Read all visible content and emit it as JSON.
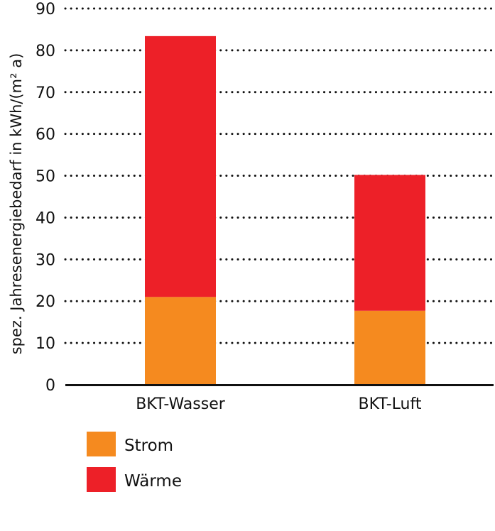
{
  "chart_data": {
    "type": "bar",
    "stacked": true,
    "title": "",
    "xlabel": "",
    "ylabel": "spez. Jahresenergiebedarf in kWh/(m² a)",
    "categories": [
      "BKT-Wasser",
      "BKT-Luft"
    ],
    "series": [
      {
        "name": "Strom",
        "color": "#f58a1f",
        "values": [
          21,
          17.7
        ]
      },
      {
        "name": "Wärme",
        "color": "#ed2028",
        "values": [
          62.4,
          32.5
        ]
      }
    ],
    "ylim": [
      0,
      90
    ],
    "yticks": [
      0,
      10,
      20,
      30,
      40,
      50,
      60,
      70,
      80,
      90
    ],
    "grid": "horizontal dotted",
    "legend": "bottom-left"
  }
}
